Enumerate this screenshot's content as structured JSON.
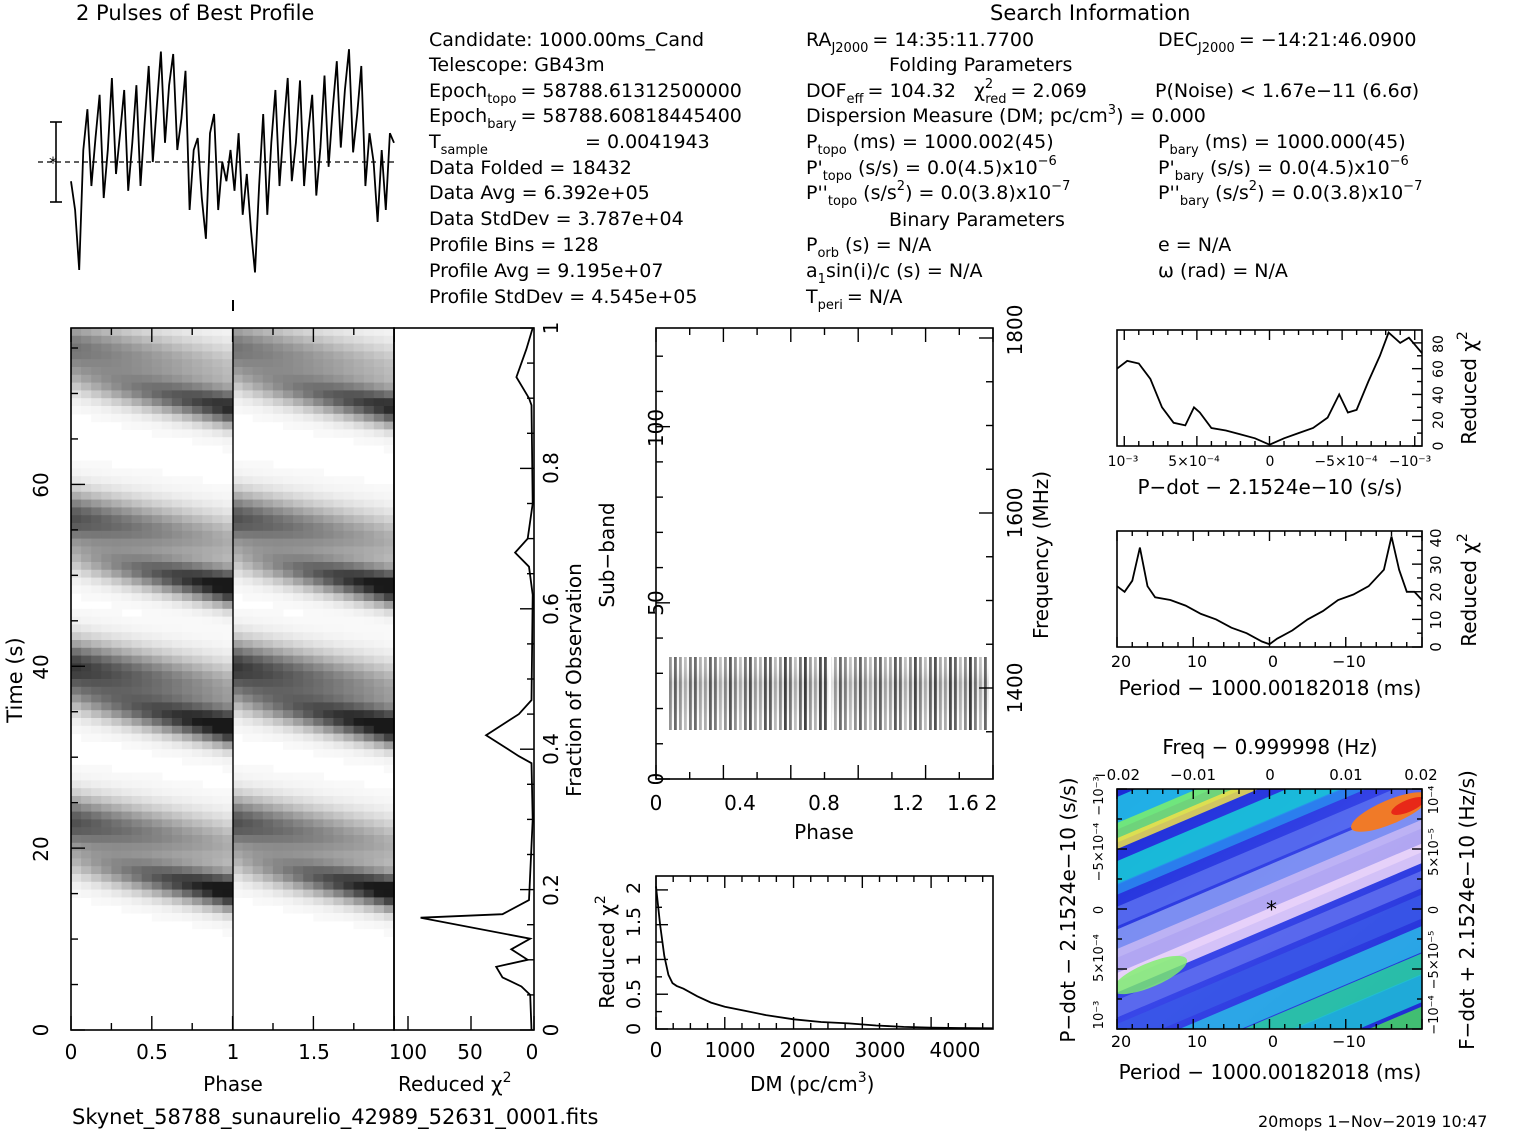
{
  "header": {
    "profile_title": "2 Pulses of Best Profile",
    "search_title": "Search Information",
    "folding_title": "Folding Parameters",
    "binary_title": "Binary Parameters"
  },
  "info": {
    "candidate": "Candidate:  1000.00ms_Cand",
    "telescope": "Telescope:  GB43m",
    "epoch_topo": "Epoch",
    "epoch_topo_sub": "topo",
    "epoch_topo_val": "= 58788.61312500000",
    "epoch_bary": "Epoch",
    "epoch_bary_sub": "bary",
    "epoch_bary_val": "= 58788.60818445400",
    "tsample": "T",
    "tsample_sub": "sample",
    "tsample_val": "=   0.0041943",
    "data_folded": "Data Folded       =   18432",
    "data_avg": "Data Avg           =   6.392e+05",
    "data_stddev": "Data StdDev      =   3.787e+04",
    "profile_bins": "Profile Bins       =   128",
    "profile_avg": "Profile Avg        =   9.195e+07",
    "profile_stddev": "Profile StdDev  =   4.545e+05",
    "ra": "RA",
    "ra_sub": "J2000",
    "ra_val": "= 14:35:11.7700",
    "dec": "DEC",
    "dec_sub": "J2000",
    "dec_val": "= −14:21:46.0900",
    "dof": "DOF",
    "dof_sub": "eff",
    "dof_val": "= 104.32",
    "chi": "χ",
    "chi_sup": "2",
    "chi_sub": "red",
    "chi_val": "= 2.069",
    "pnoise": "P(Noise) < 1.67e−11   (6.6σ)",
    "dm_line": "Dispersion Measure (DM; pc/cm",
    "dm_sup": "3",
    "dm_val": ") = 0.000",
    "ptopo": "P",
    "ptopo_sub": "topo",
    "ptopo_val": "(ms) =  1000.002(45)",
    "pbary": "P",
    "pbary_sub": "bary",
    "pbary_val": "(ms) =  1000.000(45)",
    "pdtopo": "P'",
    "pdtopo_sub": "topo",
    "pdtopo_val": "(s/s) = 0.0(4.5)x10",
    "pdtopo_sup": "−6",
    "pdbary": "P'",
    "pdbary_sub": "bary",
    "pdbary_val": "(s/s) = 0.0(4.5)x10",
    "pdbary_sup": "−6",
    "pddtopo": "P''",
    "pddtopo_sub": "topo",
    "pddtopo_val": "(s/s",
    "pddtopo_sup": "2",
    "pddtopo_val2": ") = 0.0(3.8)x10",
    "pddtopo_sup2": "−7",
    "pddbary": "P''",
    "pddbary_sub": "bary",
    "pddbary_val": "(s/s",
    "pddbary_sup": "2",
    "pddbary_val2": ") = 0.0(3.8)x10",
    "pddbary_sup2": "−7",
    "porb": "P",
    "porb_sub": "orb",
    "porb_val": "(s) = N/A",
    "asini": "a",
    "asini_sub": "1",
    "asini_val": "sin(i)/c (s) = N/A",
    "tperi": "T",
    "tperi_sub": "peri",
    "tperi_val": "= N/A",
    "ecc": "e = N/A",
    "omega": "ω (rad) = N/A"
  },
  "footer": {
    "filename": "Skynet_58788_sunaurelio_42989_52631_0001.fits",
    "stamp": "20mops   1−Nov−2019 10:47"
  },
  "labels": {
    "time_axis": "Time (s)",
    "phase": "Phase",
    "reduced": "Reduced χ",
    "sq": "2",
    "fraction": "Fraction of Observation",
    "subband": "Sub−band",
    "frequency": "Frequency (MHz)",
    "dm_axis": "DM (pc/cm",
    "dm_axis_sup": "3",
    "dm_axis_end": ")",
    "pdot_axis": "P−dot − 2.1524e−10 (s/s)",
    "period_axis": "Period − 1000.00182018 (ms)",
    "freq_axis": "Freq − 0.999998 (Hz)",
    "pdot_left": "P−dot − 2.1524e−10 (s/s)",
    "fdot_right": "F−dot + 2.1524e−10 (Hz/s)"
  },
  "ticks": {
    "phase_left": [
      "0",
      "0.5",
      "1",
      "1.5"
    ],
    "time": [
      "0",
      "20",
      "40",
      "60"
    ],
    "chi_bottom": [
      "100",
      "50",
      "0"
    ],
    "fraction": [
      "0",
      "0.2",
      "0.4",
      "0.6",
      "0.8",
      "1"
    ],
    "subband": [
      "0",
      "50",
      "100"
    ],
    "phase_mid": [
      "0",
      "0.4",
      "0.8",
      "1.2",
      "1.6",
      "2"
    ],
    "freq": [
      "1400",
      "1600",
      "1800"
    ],
    "dm_x": [
      "0",
      "1000",
      "2000",
      "3000",
      "4000"
    ],
    "dm_y": [
      "0",
      "0.5",
      "1",
      "1.5",
      "2"
    ],
    "pdot_x": [
      "10⁻³",
      "5×10⁻⁴",
      "0",
      "−5×10⁻⁴",
      "−10⁻³"
    ],
    "pdot_y": [
      "0",
      "20",
      "40",
      "60",
      "80"
    ],
    "period_x": [
      "20",
      "10",
      "0",
      "−10"
    ],
    "period_y": [
      "0",
      "10",
      "20",
      "30",
      "40"
    ],
    "map_x": [
      "20",
      "10",
      "0",
      "−10"
    ],
    "map_top": [
      "−0.02",
      "−0.01",
      "0",
      "0.01",
      "0.02"
    ],
    "map_left": [
      "10⁻³",
      "5×10⁻⁴",
      "0",
      "−5×10⁻⁴",
      "−10⁻³"
    ],
    "map_right": [
      "−10⁻⁴",
      "−5×10⁻⁵",
      "0",
      "5×10⁻⁵",
      "10⁻⁴"
    ]
  },
  "chart_data": [
    {
      "type": "line",
      "title": "2 Pulses of Best Profile",
      "xlabel": "",
      "ylabel": "",
      "xlim": [
        0,
        2
      ],
      "values": [
        0.42,
        0.3,
        0.05,
        0.55,
        0.72,
        0.4,
        0.6,
        0.78,
        0.35,
        0.55,
        0.85,
        0.45,
        0.62,
        0.8,
        0.38,
        0.58,
        0.82,
        0.4,
        0.66,
        0.9,
        0.5,
        0.74,
        0.96,
        0.58,
        0.82,
        0.95,
        0.55,
        0.68,
        0.88,
        0.3,
        0.55,
        0.6,
        0.35,
        0.18,
        0.62,
        0.7,
        0.3,
        0.5,
        0.42,
        0.55,
        0.38,
        0.62,
        0.28,
        0.45,
        0.22,
        0.04,
        0.4,
        0.7,
        0.28,
        0.58,
        0.8,
        0.4,
        0.64,
        0.85,
        0.42,
        0.58,
        0.84,
        0.4,
        0.62,
        0.78,
        0.36,
        0.56,
        0.86,
        0.48,
        0.72,
        0.92,
        0.56,
        0.8,
        0.97,
        0.54,
        0.7,
        0.9,
        0.4,
        0.62,
        0.5,
        0.25,
        0.55,
        0.3,
        0.62,
        0.58
      ]
    },
    {
      "type": "heatmap",
      "title": "",
      "xlabel": "Phase",
      "ylabel": "Time (s)",
      "xlim": [
        0,
        2
      ],
      "ylim": [
        0,
        75
      ]
    },
    {
      "type": "line",
      "xlabel": "Reduced χ2",
      "ylabel": "Fraction of Observation",
      "xlim": [
        100,
        0
      ],
      "ylim": [
        0,
        1
      ],
      "points": [
        [
          2,
          0.0
        ],
        [
          3,
          0.05
        ],
        [
          10,
          0.062
        ],
        [
          25,
          0.075
        ],
        [
          30,
          0.09
        ],
        [
          5,
          0.1
        ],
        [
          18,
          0.115
        ],
        [
          3,
          0.13
        ],
        [
          90,
          0.16
        ],
        [
          25,
          0.165
        ],
        [
          4,
          0.185
        ],
        [
          1,
          0.3
        ],
        [
          2,
          0.38
        ],
        [
          12,
          0.39
        ],
        [
          38,
          0.42
        ],
        [
          12,
          0.45
        ],
        [
          2,
          0.47
        ],
        [
          1,
          0.62
        ],
        [
          4,
          0.66
        ],
        [
          15,
          0.68
        ],
        [
          5,
          0.7
        ],
        [
          1,
          0.75
        ],
        [
          2,
          0.89
        ],
        [
          4,
          0.9
        ],
        [
          14,
          0.93
        ],
        [
          6,
          0.97
        ],
        [
          1,
          1.0
        ]
      ]
    },
    {
      "type": "heatmap",
      "xlabel": "Phase",
      "ylabel": "Sub−band",
      "xlim": [
        0,
        2
      ],
      "ylim": [
        0,
        128
      ],
      "y2label": "Frequency (MHz)",
      "y2ticks": [
        1400,
        1600,
        1800
      ],
      "band_rows": [
        14,
        35
      ]
    },
    {
      "type": "line",
      "xlabel": "DM (pc/cm3)",
      "ylabel": "Reduced χ2",
      "xlim": [
        0,
        4900
      ],
      "ylim": [
        0,
        2.2
      ],
      "points": [
        [
          0,
          2.05
        ],
        [
          60,
          1.5
        ],
        [
          120,
          1.05
        ],
        [
          180,
          0.78
        ],
        [
          240,
          0.66
        ],
        [
          300,
          0.62
        ],
        [
          400,
          0.58
        ],
        [
          600,
          0.47
        ],
        [
          800,
          0.38
        ],
        [
          1000,
          0.32
        ],
        [
          1300,
          0.26
        ],
        [
          1600,
          0.2
        ],
        [
          2000,
          0.14
        ],
        [
          2400,
          0.1
        ],
        [
          2800,
          0.08
        ],
        [
          3200,
          0.05
        ],
        [
          3600,
          0.03
        ],
        [
          4000,
          0.02
        ],
        [
          4400,
          0.015
        ],
        [
          4900,
          0.01
        ]
      ]
    },
    {
      "type": "line",
      "xlabel": "P−dot − 2.1524e−10 (s/s)",
      "ylabel": "Reduced χ2",
      "xlim": [
        0.00105,
        -0.00105
      ],
      "ylim": [
        0,
        90
      ],
      "points": [
        [
          0.00105,
          60
        ],
        [
          0.00098,
          66
        ],
        [
          0.0009,
          64
        ],
        [
          0.00082,
          52
        ],
        [
          0.00074,
          30
        ],
        [
          0.00066,
          18
        ],
        [
          0.00058,
          16
        ],
        [
          0.00052,
          30
        ],
        [
          0.00048,
          26
        ],
        [
          0.0004,
          14
        ],
        [
          0.0003,
          12
        ],
        [
          0.0002,
          9
        ],
        [
          0.0001,
          6
        ],
        [
          0,
          1
        ],
        [
          -0.0001,
          6
        ],
        [
          -0.0002,
          10
        ],
        [
          -0.0003,
          14
        ],
        [
          -0.0004,
          22
        ],
        [
          -0.00048,
          40
        ],
        [
          -0.00054,
          26
        ],
        [
          -0.0006,
          28
        ],
        [
          -0.00068,
          50
        ],
        [
          -0.00076,
          70
        ],
        [
          -0.00082,
          88
        ],
        [
          -0.0009,
          80
        ],
        [
          -0.00096,
          84
        ],
        [
          -0.00105,
          72
        ]
      ]
    },
    {
      "type": "line",
      "xlabel": "Period − 1000.00182018 (ms)",
      "ylabel": "Reduced χ2",
      "xlim": [
        20,
        -20
      ],
      "ylim": [
        0,
        42
      ],
      "points": [
        [
          20,
          22
        ],
        [
          19,
          20
        ],
        [
          18,
          24
        ],
        [
          17,
          36
        ],
        [
          16,
          22
        ],
        [
          15,
          18
        ],
        [
          13,
          17
        ],
        [
          11,
          15
        ],
        [
          9,
          12
        ],
        [
          7,
          10
        ],
        [
          5,
          7
        ],
        [
          3,
          5
        ],
        [
          1,
          2
        ],
        [
          0,
          1
        ],
        [
          -1,
          3
        ],
        [
          -3,
          6
        ],
        [
          -5,
          10
        ],
        [
          -7,
          13
        ],
        [
          -9,
          17
        ],
        [
          -11,
          19
        ],
        [
          -13,
          22
        ],
        [
          -15,
          28
        ],
        [
          -16,
          40
        ],
        [
          -17,
          28
        ],
        [
          -18,
          20
        ],
        [
          -19,
          20
        ],
        [
          -20,
          17
        ]
      ]
    },
    {
      "type": "heatmap",
      "xlabel": "Period − 1000.00182018 (ms)",
      "ylabel": "P−dot − 2.1524e−10 (s/s)",
      "x2label": "Freq − 0.999998 (Hz)",
      "y2label": "F−dot + 2.1524e−10 (Hz/s)",
      "xlim": [
        20,
        -20
      ],
      "ylim": [
        0.001,
        -0.001
      ]
    }
  ]
}
